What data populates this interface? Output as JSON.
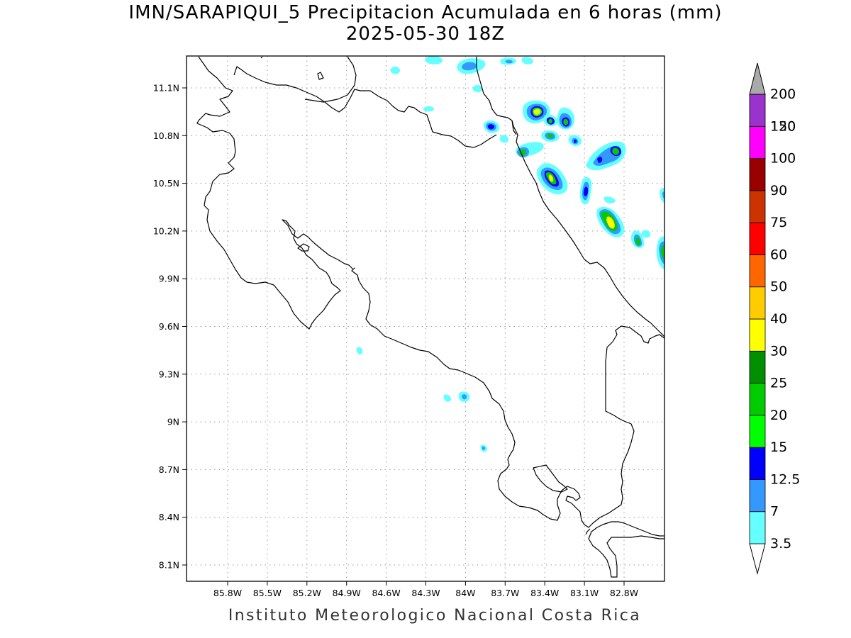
{
  "title": {
    "line1": "IMN/SARAPIQUI_5 Precipitacion Acumulada en 6 horas (mm)",
    "line2": "2025-05-30 18Z"
  },
  "footer": "Instituto Meteorologico Nacional Costa Rica",
  "map": {
    "lon_range": [
      -86.0,
      -84.0,
      -82.5
    ],
    "lon_min": -86.0,
    "lon_max": -82.5,
    "lat_min": 8.0,
    "lat_max": 11.3,
    "lon_ticks": [
      {
        "value": -85.8,
        "label": "85.8W"
      },
      {
        "value": -85.5,
        "label": "85.5W"
      },
      {
        "value": -85.2,
        "label": "85.2W"
      },
      {
        "value": -84.9,
        "label": "84.9W"
      },
      {
        "value": -84.6,
        "label": "84.6W"
      },
      {
        "value": -84.3,
        "label": "84.3W"
      },
      {
        "value": -84.0,
        "label": "84W"
      },
      {
        "value": -83.7,
        "label": "83.7W"
      },
      {
        "value": -83.4,
        "label": "83.4W"
      },
      {
        "value": -83.1,
        "label": "83.1W"
      },
      {
        "value": -82.8,
        "label": "82.8W"
      }
    ],
    "lat_ticks": [
      {
        "value": 11.1,
        "label": "11.1N"
      },
      {
        "value": 10.8,
        "label": "10.8N"
      },
      {
        "value": 10.5,
        "label": "10.5N"
      },
      {
        "value": 10.2,
        "label": "10.2N"
      },
      {
        "value": 9.9,
        "label": "9.9N"
      },
      {
        "value": 9.6,
        "label": "9.6N"
      },
      {
        "value": 9.3,
        "label": "9.3N"
      },
      {
        "value": 9.0,
        "label": "9N"
      },
      {
        "value": 8.7,
        "label": "8.7N"
      },
      {
        "value": 8.4,
        "label": "8.4N"
      },
      {
        "value": 8.1,
        "label": "8.1N"
      }
    ],
    "grid": true
  },
  "colorbar": {
    "levels": [
      {
        "label": "3.5",
        "color": "#66ffff"
      },
      {
        "label": "7",
        "color": "#3399ff"
      },
      {
        "label": "12.5",
        "color": "#0000ff"
      },
      {
        "label": "15",
        "color": "#00ff00"
      },
      {
        "label": "20",
        "color": "#00cc00"
      },
      {
        "label": "25",
        "color": "#008f00"
      },
      {
        "label": "30",
        "color": "#ffff00"
      },
      {
        "label": "40",
        "color": "#ffcc00"
      },
      {
        "label": "50",
        "color": "#ff6600"
      },
      {
        "label": "60",
        "color": "#ff0000"
      },
      {
        "label": "75",
        "color": "#cc3300"
      },
      {
        "label": "90",
        "color": "#990000"
      },
      {
        "label": "100",
        "color": "#ff00ff"
      },
      {
        "label": "120",
        "color": "#9933cc"
      },
      {
        "label": "150",
        "color": "#f2f2f2"
      },
      {
        "label": "200",
        "color": "#aaaaaa"
      }
    ]
  }
}
